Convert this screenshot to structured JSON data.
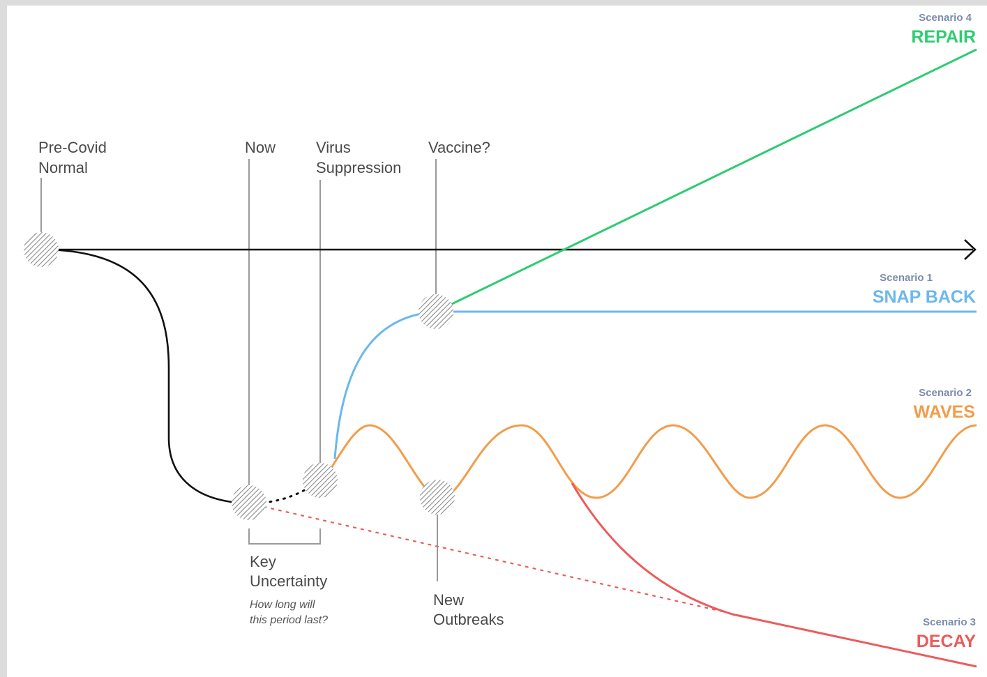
{
  "labels": {
    "pre_covid_line1": "Pre-Covid",
    "pre_covid_line2": "Normal",
    "now": "Now",
    "virus_line1": "Virus",
    "virus_line2": "Suppression",
    "vaccine": "Vaccine?",
    "key_line1": "Key",
    "key_line2": "Uncertainty",
    "key_note1": "How long will",
    "key_note2": "this period last?",
    "outbreaks_line1": "New",
    "outbreaks_line2": "Outbreaks"
  },
  "scenarios": {
    "s4_number": "Scenario 4",
    "s4_name": "REPAIR",
    "s1_number": "Scenario 1",
    "s1_name": "SNAP BACK",
    "s2_number": "Scenario 2",
    "s2_name": "WAVES",
    "s3_number": "Scenario 3",
    "s3_name": "DECAY"
  },
  "colors": {
    "repair": "#2ecc71",
    "snap_back": "#6cb8ec",
    "waves": "#f39c4a",
    "decay": "#ec5b5b",
    "baseline": "#111111"
  }
}
